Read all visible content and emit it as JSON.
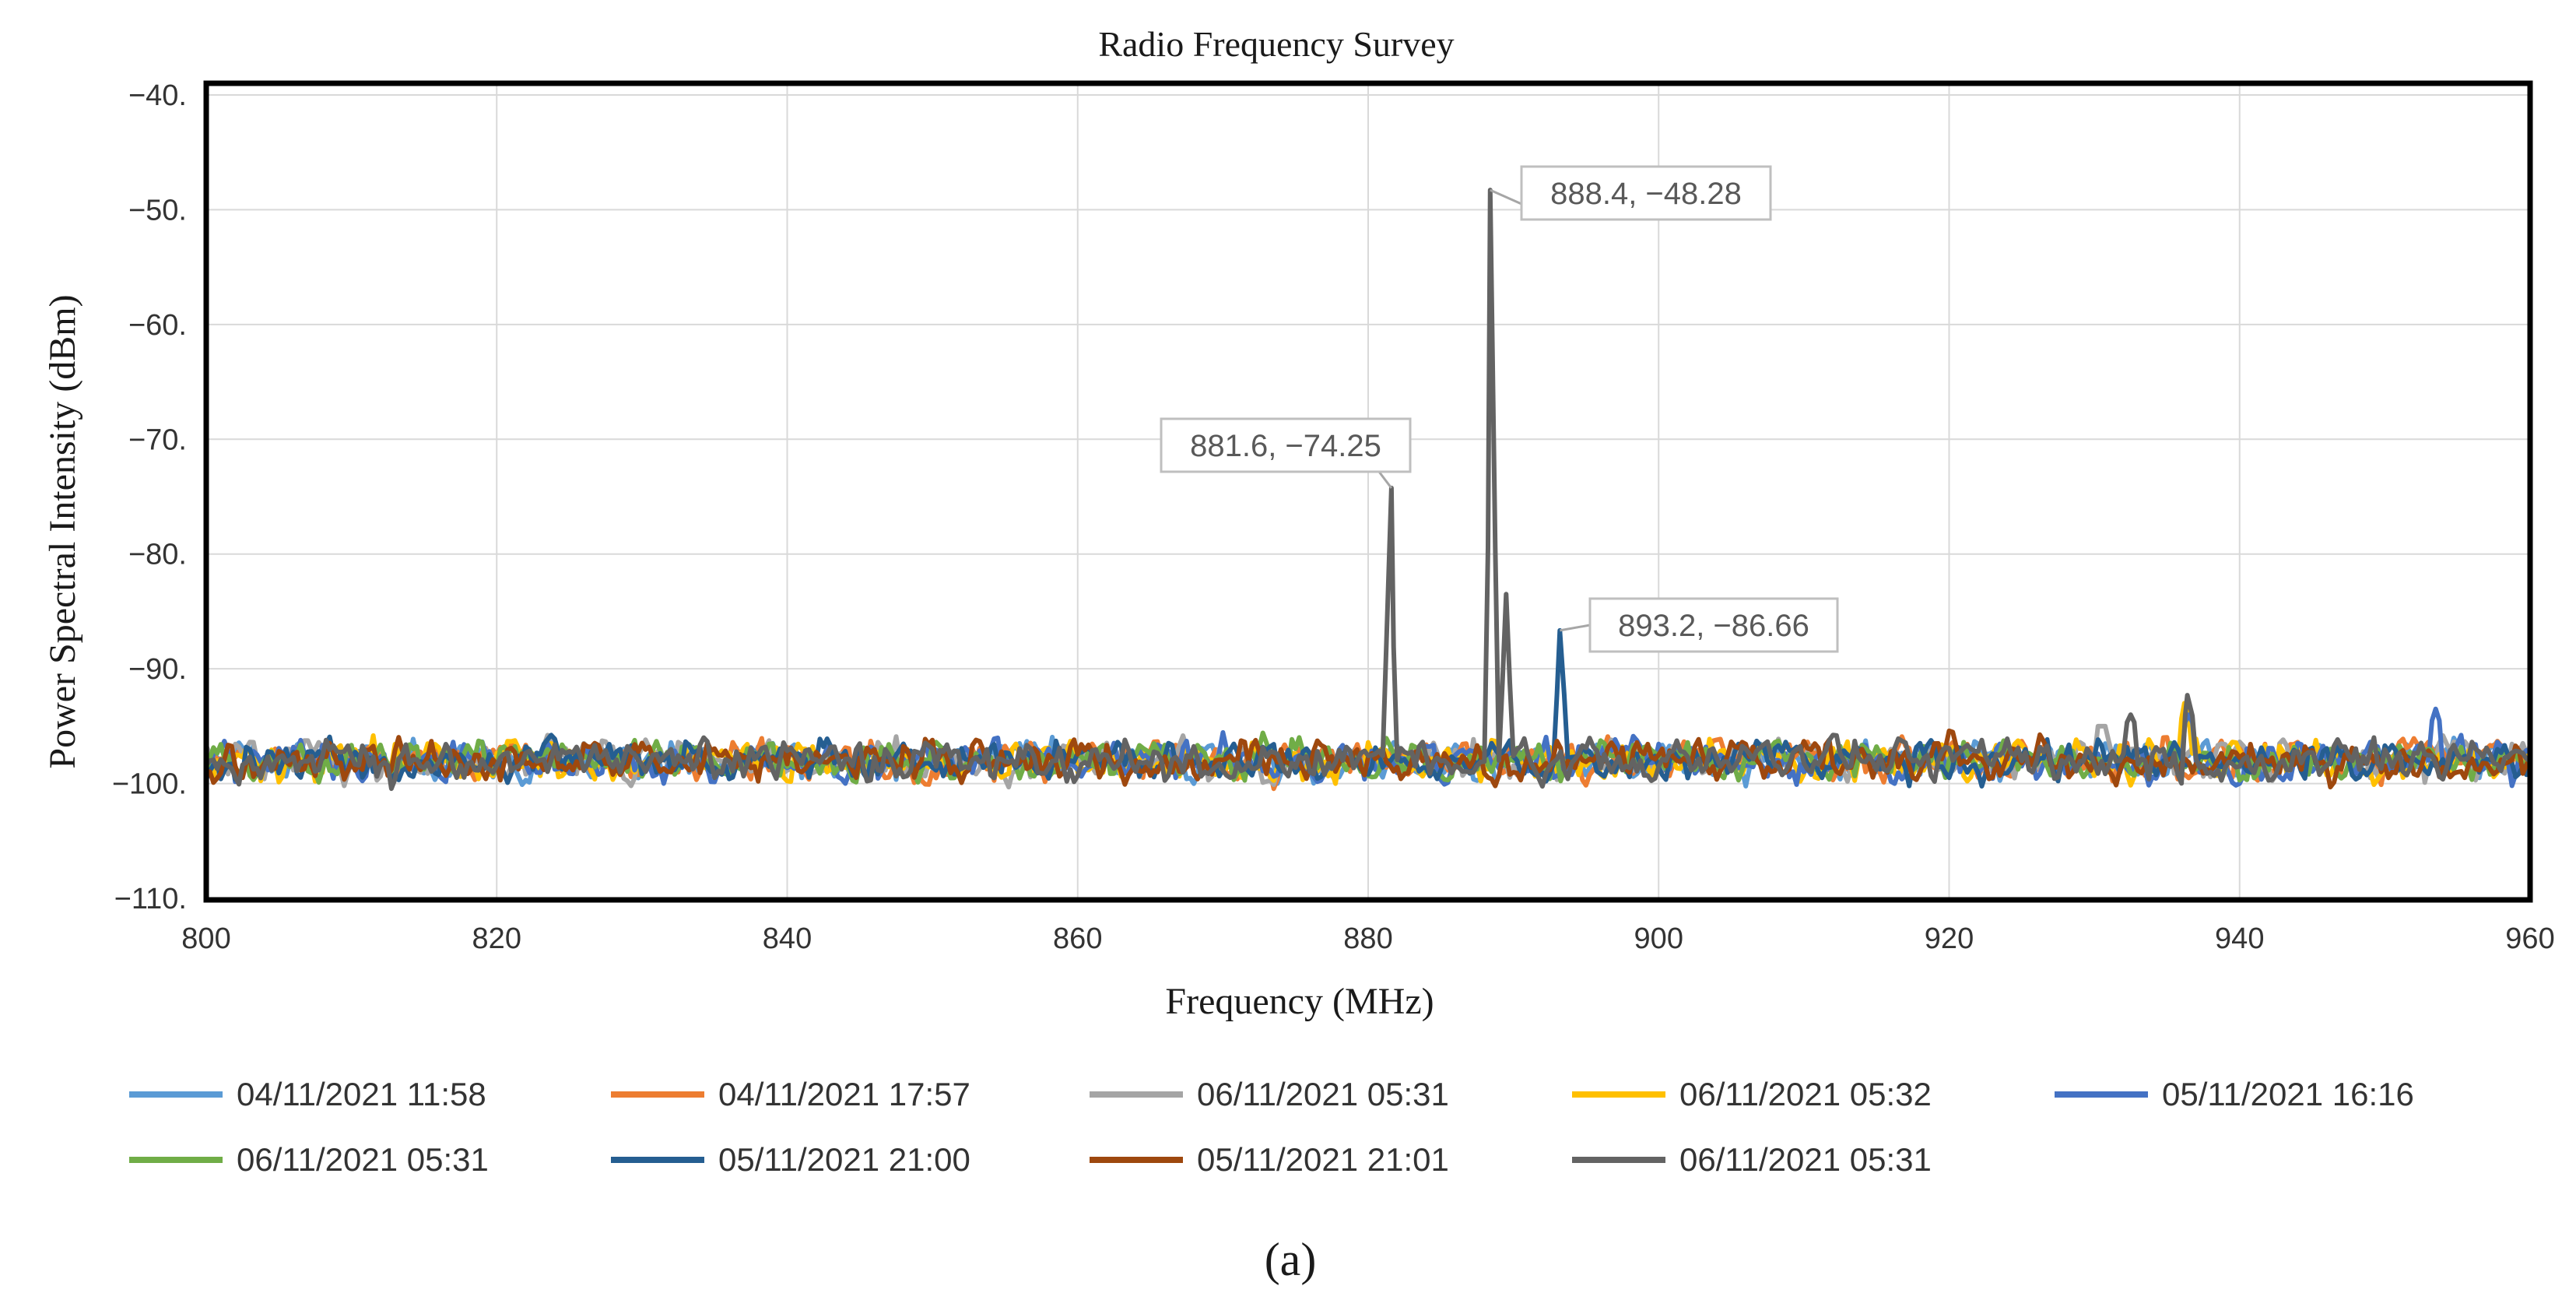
{
  "chart_data": {
    "type": "line",
    "title": "Radio Frequency Survey",
    "xlabel": "Frequency (MHz)",
    "ylabel": "Power Spectral Intensity (dBm)",
    "xlim": [
      800,
      960
    ],
    "ylim": [
      -110,
      -40
    ],
    "x_ticks": [
      800,
      820,
      840,
      860,
      880,
      900,
      920,
      940,
      960
    ],
    "x_tick_labels": [
      "800",
      "820",
      "840",
      "860",
      "880",
      "900",
      "920",
      "940",
      "960"
    ],
    "y_ticks": [
      -40,
      -50,
      -60,
      -70,
      -80,
      -90,
      -100,
      -110
    ],
    "y_tick_labels": [
      "−40.",
      "−50.",
      "−60.",
      "−70.",
      "−80.",
      "−90.",
      "−100.",
      "−110."
    ],
    "grid": true,
    "legend_position": "bottom",
    "noise_floor_dbm": -98,
    "series": [
      {
        "name": "04/11/2021 11:58",
        "color": "#5b9bd5",
        "peaks": []
      },
      {
        "name": "04/11/2021 17:57",
        "color": "#ed7d31",
        "peaks": []
      },
      {
        "name": "06/11/2021 05:31",
        "color": "#a5a5a5",
        "peaks": [
          {
            "x": 930.5,
            "y": -95
          }
        ]
      },
      {
        "name": "06/11/2021 05:32",
        "color": "#ffc000",
        "peaks": [
          {
            "x": 936.2,
            "y": -93
          }
        ]
      },
      {
        "name": "05/11/2021 16:16",
        "color": "#4472c4",
        "peaks": [
          {
            "x": 953.5,
            "y": -93.5
          },
          {
            "x": 936.5,
            "y": -94
          }
        ]
      },
      {
        "name": "06/11/2021 05:31",
        "color": "#70ad47",
        "peaks": []
      },
      {
        "name": "05/11/2021 21:00",
        "color": "#255e91",
        "peaks": [
          {
            "x": 893.2,
            "y": -86.66
          }
        ]
      },
      {
        "name": "05/11/2021 21:01",
        "color": "#9e480e",
        "peaks": []
      },
      {
        "name": "06/11/2021 05:31",
        "color": "#636363",
        "peaks": [
          {
            "x": 881.6,
            "y": -74.25
          },
          {
            "x": 888.4,
            "y": -48.28
          },
          {
            "x": 889.5,
            "y": -83.5
          },
          {
            "x": 936.4,
            "y": -92.3
          },
          {
            "x": 932.5,
            "y": -94
          }
        ]
      }
    ],
    "annotations": [
      {
        "text": "888.4, −48.28",
        "x": 888.4,
        "y": -48.28
      },
      {
        "text": "881.6, −74.25",
        "x": 881.6,
        "y": -74.25
      },
      {
        "text": "893.2, −86.66",
        "x": 893.2,
        "y": -86.66
      }
    ]
  },
  "caption": "(a)"
}
